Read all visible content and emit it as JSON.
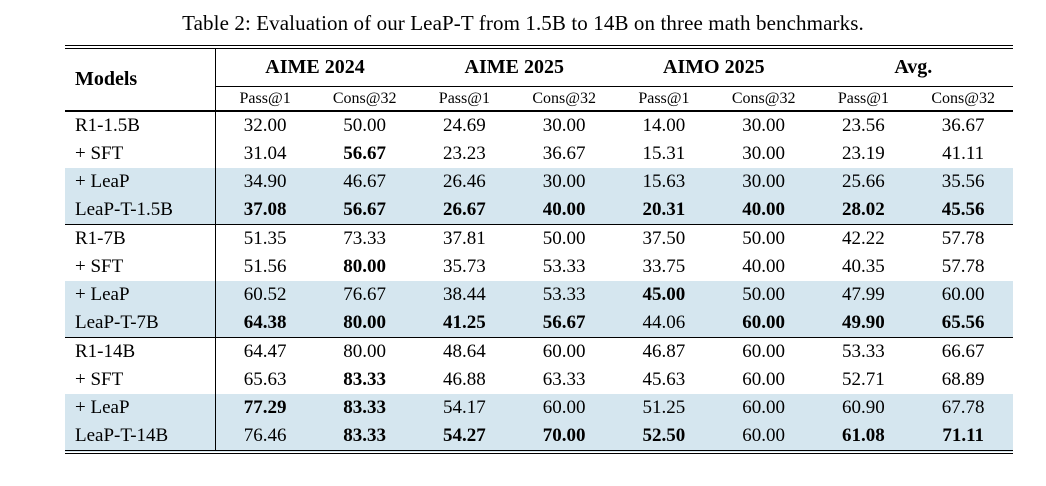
{
  "caption": "Table 2: Evaluation of our LeaP-T from 1.5B to 14B on three math benchmarks.",
  "colors": {
    "row_highlight": "#d5e6ef",
    "rule": "#000000",
    "background": "#ffffff"
  },
  "table": {
    "models_header": "Models",
    "group_headers": [
      "AIME 2024",
      "AIME 2025",
      "AIMO 2025",
      "Avg."
    ],
    "metric_headers": [
      "Pass@1",
      "Cons@32",
      "Pass@1",
      "Cons@32",
      "Pass@1",
      "Cons@32",
      "Pass@1",
      "Cons@32"
    ],
    "blocks": [
      {
        "rows": [
          {
            "model": "R1-1.5B",
            "highlight": false,
            "values": [
              {
                "v": "32.00",
                "b": false
              },
              {
                "v": "50.00",
                "b": false
              },
              {
                "v": "24.69",
                "b": false
              },
              {
                "v": "30.00",
                "b": false
              },
              {
                "v": "14.00",
                "b": false
              },
              {
                "v": "30.00",
                "b": false
              },
              {
                "v": "23.56",
                "b": false
              },
              {
                "v": "36.67",
                "b": false
              }
            ]
          },
          {
            "model": "+ SFT",
            "highlight": false,
            "values": [
              {
                "v": "31.04",
                "b": false
              },
              {
                "v": "56.67",
                "b": true
              },
              {
                "v": "23.23",
                "b": false
              },
              {
                "v": "36.67",
                "b": false
              },
              {
                "v": "15.31",
                "b": false
              },
              {
                "v": "30.00",
                "b": false
              },
              {
                "v": "23.19",
                "b": false
              },
              {
                "v": "41.11",
                "b": false
              }
            ]
          },
          {
            "model": "+ LeaP",
            "highlight": true,
            "values": [
              {
                "v": "34.90",
                "b": false
              },
              {
                "v": "46.67",
                "b": false
              },
              {
                "v": "26.46",
                "b": false
              },
              {
                "v": "30.00",
                "b": false
              },
              {
                "v": "15.63",
                "b": false
              },
              {
                "v": "30.00",
                "b": false
              },
              {
                "v": "25.66",
                "b": false
              },
              {
                "v": "35.56",
                "b": false
              }
            ]
          },
          {
            "model": "LeaP-T-1.5B",
            "highlight": true,
            "values": [
              {
                "v": "37.08",
                "b": true
              },
              {
                "v": "56.67",
                "b": true
              },
              {
                "v": "26.67",
                "b": true
              },
              {
                "v": "40.00",
                "b": true
              },
              {
                "v": "20.31",
                "b": true
              },
              {
                "v": "40.00",
                "b": true
              },
              {
                "v": "28.02",
                "b": true
              },
              {
                "v": "45.56",
                "b": true
              }
            ]
          }
        ]
      },
      {
        "rows": [
          {
            "model": "R1-7B",
            "highlight": false,
            "values": [
              {
                "v": "51.35",
                "b": false
              },
              {
                "v": "73.33",
                "b": false
              },
              {
                "v": "37.81",
                "b": false
              },
              {
                "v": "50.00",
                "b": false
              },
              {
                "v": "37.50",
                "b": false
              },
              {
                "v": "50.00",
                "b": false
              },
              {
                "v": "42.22",
                "b": false
              },
              {
                "v": "57.78",
                "b": false
              }
            ]
          },
          {
            "model": "+ SFT",
            "highlight": false,
            "values": [
              {
                "v": "51.56",
                "b": false
              },
              {
                "v": "80.00",
                "b": true
              },
              {
                "v": "35.73",
                "b": false
              },
              {
                "v": "53.33",
                "b": false
              },
              {
                "v": "33.75",
                "b": false
              },
              {
                "v": "40.00",
                "b": false
              },
              {
                "v": "40.35",
                "b": false
              },
              {
                "v": "57.78",
                "b": false
              }
            ]
          },
          {
            "model": "+ LeaP",
            "highlight": true,
            "values": [
              {
                "v": "60.52",
                "b": false
              },
              {
                "v": "76.67",
                "b": false
              },
              {
                "v": "38.44",
                "b": false
              },
              {
                "v": "53.33",
                "b": false
              },
              {
                "v": "45.00",
                "b": true
              },
              {
                "v": "50.00",
                "b": false
              },
              {
                "v": "47.99",
                "b": false
              },
              {
                "v": "60.00",
                "b": false
              }
            ]
          },
          {
            "model": "LeaP-T-7B",
            "highlight": true,
            "values": [
              {
                "v": "64.38",
                "b": true
              },
              {
                "v": "80.00",
                "b": true
              },
              {
                "v": "41.25",
                "b": true
              },
              {
                "v": "56.67",
                "b": true
              },
              {
                "v": "44.06",
                "b": false
              },
              {
                "v": "60.00",
                "b": true
              },
              {
                "v": "49.90",
                "b": true
              },
              {
                "v": "65.56",
                "b": true
              }
            ]
          }
        ]
      },
      {
        "rows": [
          {
            "model": "R1-14B",
            "highlight": false,
            "values": [
              {
                "v": "64.47",
                "b": false
              },
              {
                "v": "80.00",
                "b": false
              },
              {
                "v": "48.64",
                "b": false
              },
              {
                "v": "60.00",
                "b": false
              },
              {
                "v": "46.87",
                "b": false
              },
              {
                "v": "60.00",
                "b": false
              },
              {
                "v": "53.33",
                "b": false
              },
              {
                "v": "66.67",
                "b": false
              }
            ]
          },
          {
            "model": "+ SFT",
            "highlight": false,
            "values": [
              {
                "v": "65.63",
                "b": false
              },
              {
                "v": "83.33",
                "b": true
              },
              {
                "v": "46.88",
                "b": false
              },
              {
                "v": "63.33",
                "b": false
              },
              {
                "v": "45.63",
                "b": false
              },
              {
                "v": "60.00",
                "b": false
              },
              {
                "v": "52.71",
                "b": false
              },
              {
                "v": "68.89",
                "b": false
              }
            ]
          },
          {
            "model": "+ LeaP",
            "highlight": true,
            "values": [
              {
                "v": "77.29",
                "b": true
              },
              {
                "v": "83.33",
                "b": true
              },
              {
                "v": "54.17",
                "b": false
              },
              {
                "v": "60.00",
                "b": false
              },
              {
                "v": "51.25",
                "b": false
              },
              {
                "v": "60.00",
                "b": false
              },
              {
                "v": "60.90",
                "b": false
              },
              {
                "v": "67.78",
                "b": false
              }
            ]
          },
          {
            "model": "LeaP-T-14B",
            "highlight": true,
            "values": [
              {
                "v": "76.46",
                "b": false
              },
              {
                "v": "83.33",
                "b": true
              },
              {
                "v": "54.27",
                "b": true
              },
              {
                "v": "70.00",
                "b": true
              },
              {
                "v": "52.50",
                "b": true
              },
              {
                "v": "60.00",
                "b": false
              },
              {
                "v": "61.08",
                "b": true
              },
              {
                "v": "71.11",
                "b": true
              }
            ]
          }
        ]
      }
    ]
  }
}
